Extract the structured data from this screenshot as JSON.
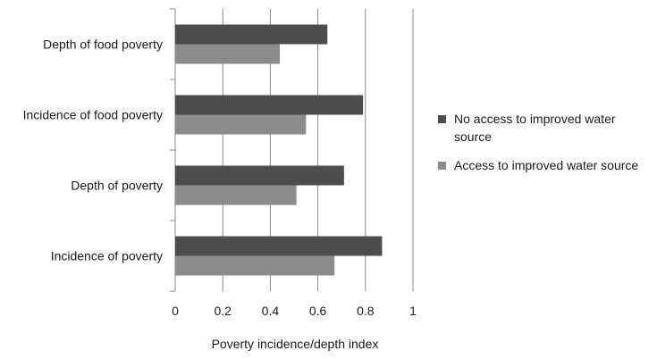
{
  "chart_data": {
    "type": "bar",
    "orientation": "horizontal",
    "categories": [
      "Depth of food poverty",
      "Incidence of food poverty",
      "Depth of poverty",
      "Incidence of poverty"
    ],
    "series": [
      {
        "name": "No access to improved water source",
        "color": "#4d4d4d",
        "values": [
          0.64,
          0.79,
          0.71,
          0.87
        ]
      },
      {
        "name": "Access to improved water source",
        "color": "#8c8c8c",
        "values": [
          0.44,
          0.55,
          0.51,
          0.67
        ]
      }
    ],
    "xlabel": "Poverty incidence/depth index",
    "xlim": [
      0,
      1
    ],
    "xticks": [
      "0",
      "0.2",
      "0.4",
      "0.6",
      "0.8",
      "1"
    ],
    "grid": true,
    "legend": "right"
  }
}
